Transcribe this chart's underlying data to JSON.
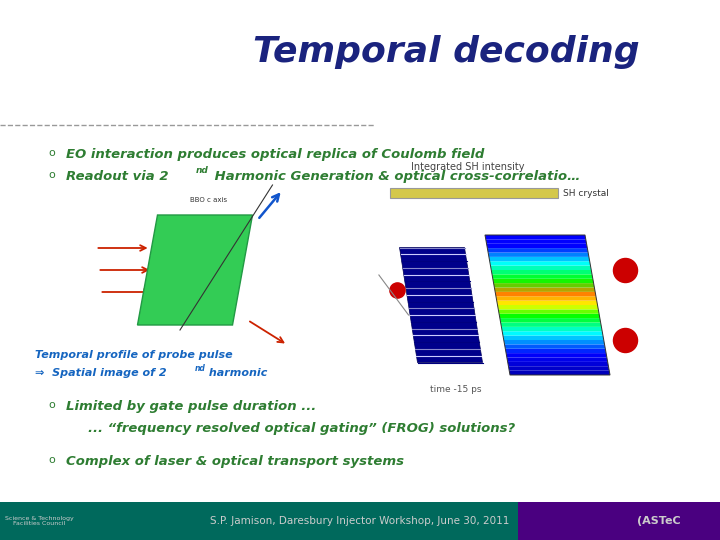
{
  "title": "Temporal decoding",
  "title_color": "#1a237e",
  "title_fontsize": 26,
  "bullet_color": "#2e7d32",
  "bullet1": "EO interaction produces optical replica of Coulomb field",
  "bullet2_main": "Readout via 2",
  "bullet2_super": "nd",
  "bullet2_rest": " Harmonic Generation & optical cross-correlatio…",
  "caption1": "Temporal profile of probe pulse",
  "caption2": "⇒  Spatial image of 2",
  "caption2_super": "nd",
  "caption2_rest": " harmonic",
  "caption_color": "#1565c0",
  "integrated_label": "Integrated SH intensity",
  "sh_label": "SH crystal",
  "time_label": "time -15 ps",
  "bullet3_line1": "Limited by gate pulse duration ...",
  "bullet3_line2": "... “frequency resolved optical gating” (FROG) solutions?",
  "bullet4": "Complex of laser & optical transport systems",
  "footer_text": "S.P. Jamison, Daresbury Injector Workshop, June 30, 2011",
  "footer_bg_left": "#00695c",
  "footer_bg_right": "#4a0080",
  "footer_text_color": "#cccccc",
  "bg_color": "#ffffff",
  "dashed_line_color": "#999999",
  "sh_bar_color": "#d4c84a",
  "sh_bar_edge": "#999999"
}
